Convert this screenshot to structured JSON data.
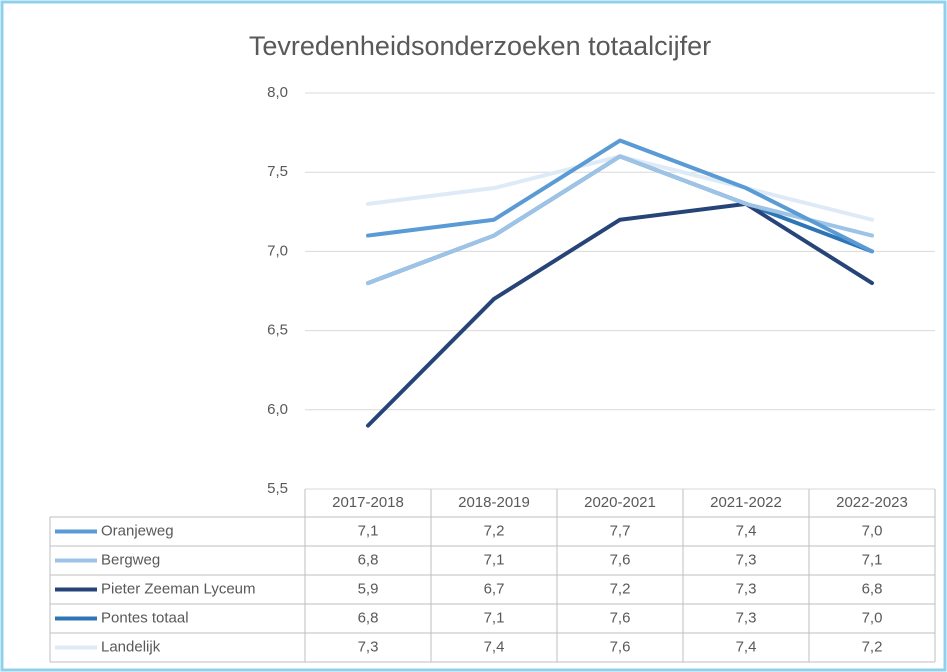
{
  "chart_data": {
    "type": "line",
    "title": "Tevredenheidsonderzoeken totaalcijfer",
    "categories": [
      "2017-2018",
      "2018-2019",
      "2020-2021",
      "2021-2022",
      "2022-2023"
    ],
    "series": [
      {
        "name": "Oranjeweg",
        "color": "#5b9bd5",
        "values": [
          7.1,
          7.2,
          7.7,
          7.4,
          7.0
        ],
        "value_labels": [
          "7,1",
          "7,2",
          "7,7",
          "7,4",
          "7,0"
        ]
      },
      {
        "name": "Bergweg",
        "color": "#9dc3e6",
        "values": [
          6.8,
          7.1,
          7.6,
          7.3,
          7.1
        ],
        "value_labels": [
          "6,8",
          "7,1",
          "7,6",
          "7,3",
          "7,1"
        ]
      },
      {
        "name": "Pieter Zeeman Lyceum",
        "color": "#264478",
        "values": [
          5.9,
          6.7,
          7.2,
          7.3,
          6.8
        ],
        "value_labels": [
          "5,9",
          "6,7",
          "7,2",
          "7,3",
          "6,8"
        ]
      },
      {
        "name": "Pontes totaal",
        "color": "#2e75b6",
        "values": [
          6.8,
          7.1,
          7.6,
          7.3,
          7.0
        ],
        "value_labels": [
          "6,8",
          "7,1",
          "7,6",
          "7,3",
          "7,0"
        ]
      },
      {
        "name": "Landelijk",
        "color": "#deebf7",
        "values": [
          7.3,
          7.4,
          7.6,
          7.4,
          7.2
        ],
        "value_labels": [
          "7,3",
          "7,4",
          "7,6",
          "7,4",
          "7,2"
        ]
      }
    ],
    "ylim": [
      5.5,
      8.0
    ],
    "yticks": [
      {
        "value": 5.5,
        "label": "5,5"
      },
      {
        "value": 6.0,
        "label": "6,0"
      },
      {
        "value": 6.5,
        "label": "6,5"
      },
      {
        "value": 7.0,
        "label": "7,0"
      },
      {
        "value": 7.5,
        "label": "7,5"
      },
      {
        "value": 8.0,
        "label": "8,0"
      }
    ],
    "grid": true
  }
}
